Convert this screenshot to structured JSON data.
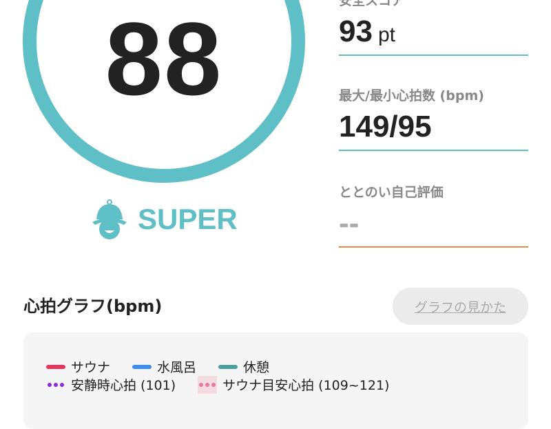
{
  "score": {
    "value": "88",
    "rank": "SUPER",
    "rank_icon": "sauna-hat-icon"
  },
  "stats": [
    {
      "label": "安全スコア",
      "value": "93",
      "unit": "pt"
    },
    {
      "label": "最大/最小心拍数 (bpm)",
      "value": "149/95",
      "unit": ""
    },
    {
      "label": "ととのい自己評価",
      "value": "--",
      "unit": ""
    }
  ],
  "graph": {
    "title": "心拍グラフ(bpm)",
    "guide_button": "グラフの見かた",
    "legend": [
      {
        "label": "サウナ",
        "color": "#e8375a",
        "style": "line"
      },
      {
        "label": "水風呂",
        "color": "#3a8cf2",
        "style": "line"
      },
      {
        "label": "休憩",
        "color": "#4a9e9e",
        "style": "line"
      },
      {
        "label": "安静時心拍 (101)",
        "color": "#8a2be2",
        "style": "dots"
      },
      {
        "label": "サウナ目安心拍 (109~121)",
        "color": "#e87a9a",
        "style": "dots"
      }
    ]
  },
  "colors": {
    "accent": "#5fbfc6",
    "self_eval_line": "#e8894a"
  }
}
